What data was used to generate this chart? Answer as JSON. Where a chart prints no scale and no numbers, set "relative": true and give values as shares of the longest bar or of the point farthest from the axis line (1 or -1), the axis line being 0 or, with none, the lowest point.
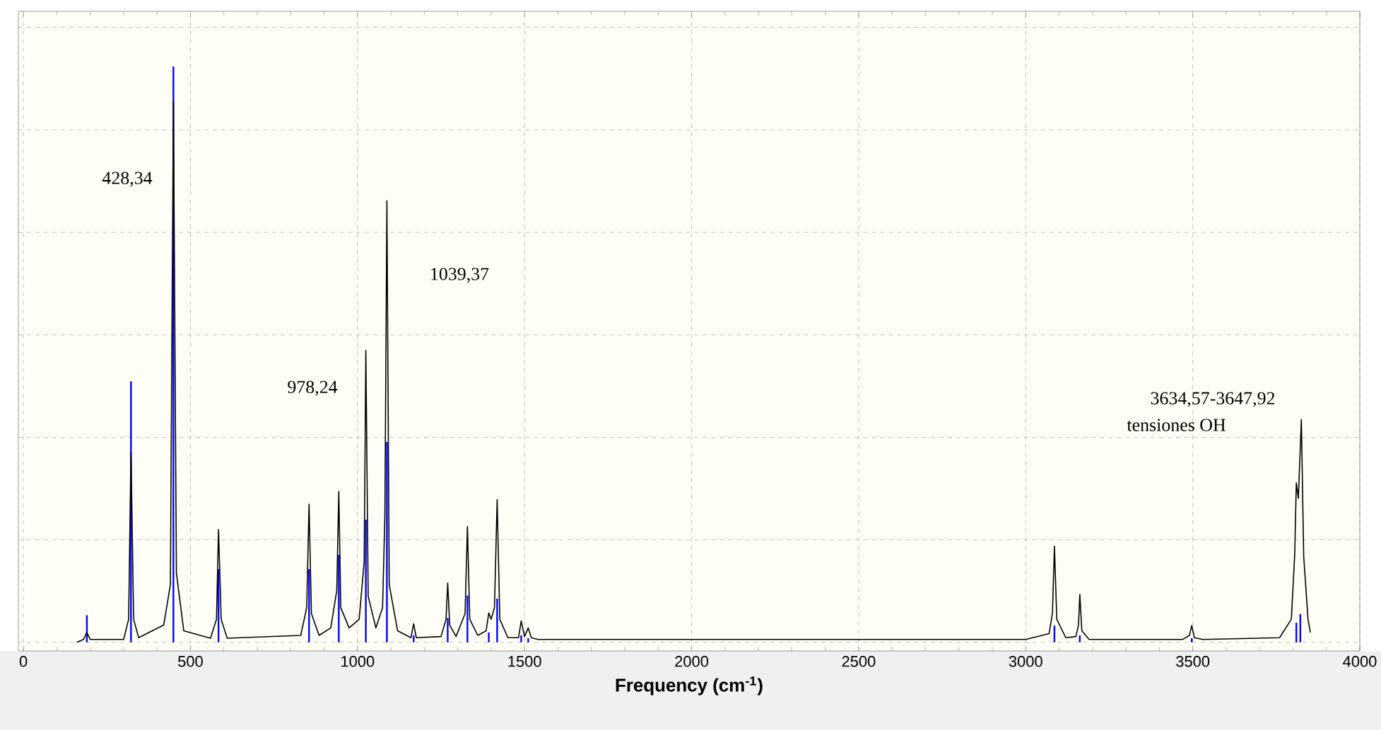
{
  "chart_data": {
    "type": "line",
    "xlabel": "**Frequency (cm$^{-1}$)**",
    "relative": true,
    "grid": true,
    "marker": "none",
    "xlim": [
      -15,
      4000
    ],
    "xticks": [
      0,
      500,
      1000,
      1500,
      2000,
      2500,
      3000,
      3500,
      4000
    ],
    "annotations": [
      "428,34",
      "978,24",
      "1039,37",
      "3634,57-3647,92",
      "tensiones OH"
    ],
    "series": [
      {
        "color": "#000000",
        "x": [
          160,
          180,
          190,
          200,
          300,
          315,
          322,
          330,
          345,
          420,
          440,
          449,
          458,
          480,
          560,
          578,
          584,
          592,
          610,
          830,
          848,
          855,
          862,
          885,
          920,
          938,
          944,
          950,
          975,
          1005,
          1020,
          1025,
          1032,
          1055,
          1075,
          1082,
          1088,
          1095,
          1120,
          1160,
          1168,
          1176,
          1250,
          1265,
          1270,
          1276,
          1295,
          1322,
          1329,
          1336,
          1360,
          1385,
          1393,
          1400,
          1410,
          1418,
          1426,
          1450,
          1482,
          1490,
          1500,
          1511,
          1520,
          1540,
          3000,
          3070,
          3080,
          3086,
          3093,
          3120,
          3150,
          3158,
          3162,
          3168,
          3190,
          3470,
          3490,
          3497,
          3505,
          3530,
          3760,
          3795,
          3805,
          3810,
          3816,
          3825,
          3832,
          3845,
          3852
        ],
        "values": [
          0,
          0.005,
          0.017,
          0.005,
          0.005,
          0.04,
          0.33,
          0.04,
          0.008,
          0.03,
          0.1,
          0.94,
          0.12,
          0.02,
          0.007,
          0.04,
          0.196,
          0.04,
          0.007,
          0.012,
          0.06,
          0.24,
          0.05,
          0.012,
          0.025,
          0.09,
          0.262,
          0.06,
          0.025,
          0.04,
          0.14,
          0.507,
          0.08,
          0.025,
          0.06,
          0.22,
          0.767,
          0.1,
          0.02,
          0.008,
          0.032,
          0.008,
          0.01,
          0.04,
          0.103,
          0.03,
          0.01,
          0.05,
          0.201,
          0.04,
          0.012,
          0.02,
          0.051,
          0.04,
          0.06,
          0.248,
          0.04,
          0.008,
          0.008,
          0.037,
          0.01,
          0.025,
          0.008,
          0.005,
          0.005,
          0.015,
          0.05,
          0.167,
          0.04,
          0.008,
          0.01,
          0.03,
          0.083,
          0.02,
          0.005,
          0.005,
          0.012,
          0.029,
          0.008,
          0.005,
          0.008,
          0.04,
          0.15,
          0.277,
          0.25,
          0.387,
          0.15,
          0.04,
          0.017
        ]
      },
      {
        "type": "bar",
        "color": "#0000ff",
        "x": [
          190,
          322,
          449,
          584,
          855,
          944,
          1025,
          1088,
          1168,
          1270,
          1329,
          1393,
          1418,
          1490,
          1511,
          3086,
          3162,
          3497,
          3810,
          3822
        ],
        "values": [
          0.047,
          0.453,
          1,
          0.127,
          0.127,
          0.152,
          0.213,
          0.348,
          0.012,
          0.042,
          0.081,
          0.017,
          0.076,
          0.012,
          0.007,
          0.029,
          0.012,
          0.007,
          0.034,
          0.049
        ]
      }
    ]
  }
}
